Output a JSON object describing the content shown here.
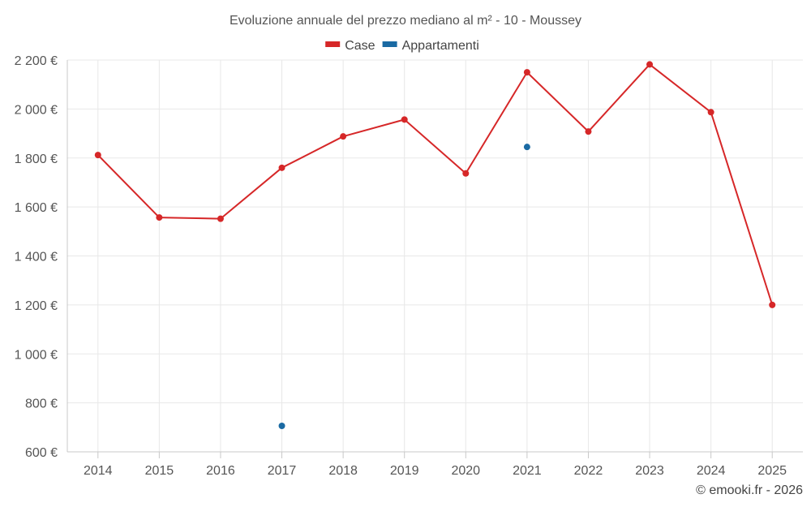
{
  "chart_data": {
    "type": "line",
    "title": "Evoluzione annuale del prezzo mediano al m² - 10 - Moussey",
    "xlabel": "",
    "ylabel": "",
    "categories": [
      "2014",
      "2015",
      "2016",
      "2017",
      "2018",
      "2019",
      "2020",
      "2021",
      "2022",
      "2023",
      "2024",
      "2025"
    ],
    "ylim": [
      600,
      2200
    ],
    "yticks": [
      600,
      800,
      1000,
      1200,
      1400,
      1600,
      1800,
      2000,
      2200
    ],
    "ytick_labels": [
      "600 €",
      "800 €",
      "1 000 €",
      "1 200 €",
      "1 400 €",
      "1 600 €",
      "1 800 €",
      "2 000 €",
      "2 200 €"
    ],
    "grid": true,
    "legend_position": "top-center",
    "series": [
      {
        "name": "Case",
        "color": "#d62728",
        "show_line": true,
        "values": [
          1812,
          1557,
          1552,
          1760,
          1888,
          1957,
          1737,
          2150,
          1908,
          2182,
          1987,
          1200
        ]
      },
      {
        "name": "Appartamenti",
        "color": "#1a6aa3",
        "show_line": false,
        "values": [
          null,
          null,
          null,
          706,
          null,
          null,
          null,
          1845,
          null,
          null,
          null,
          null
        ]
      }
    ]
  },
  "credit": "© emooki.fr - 2026"
}
